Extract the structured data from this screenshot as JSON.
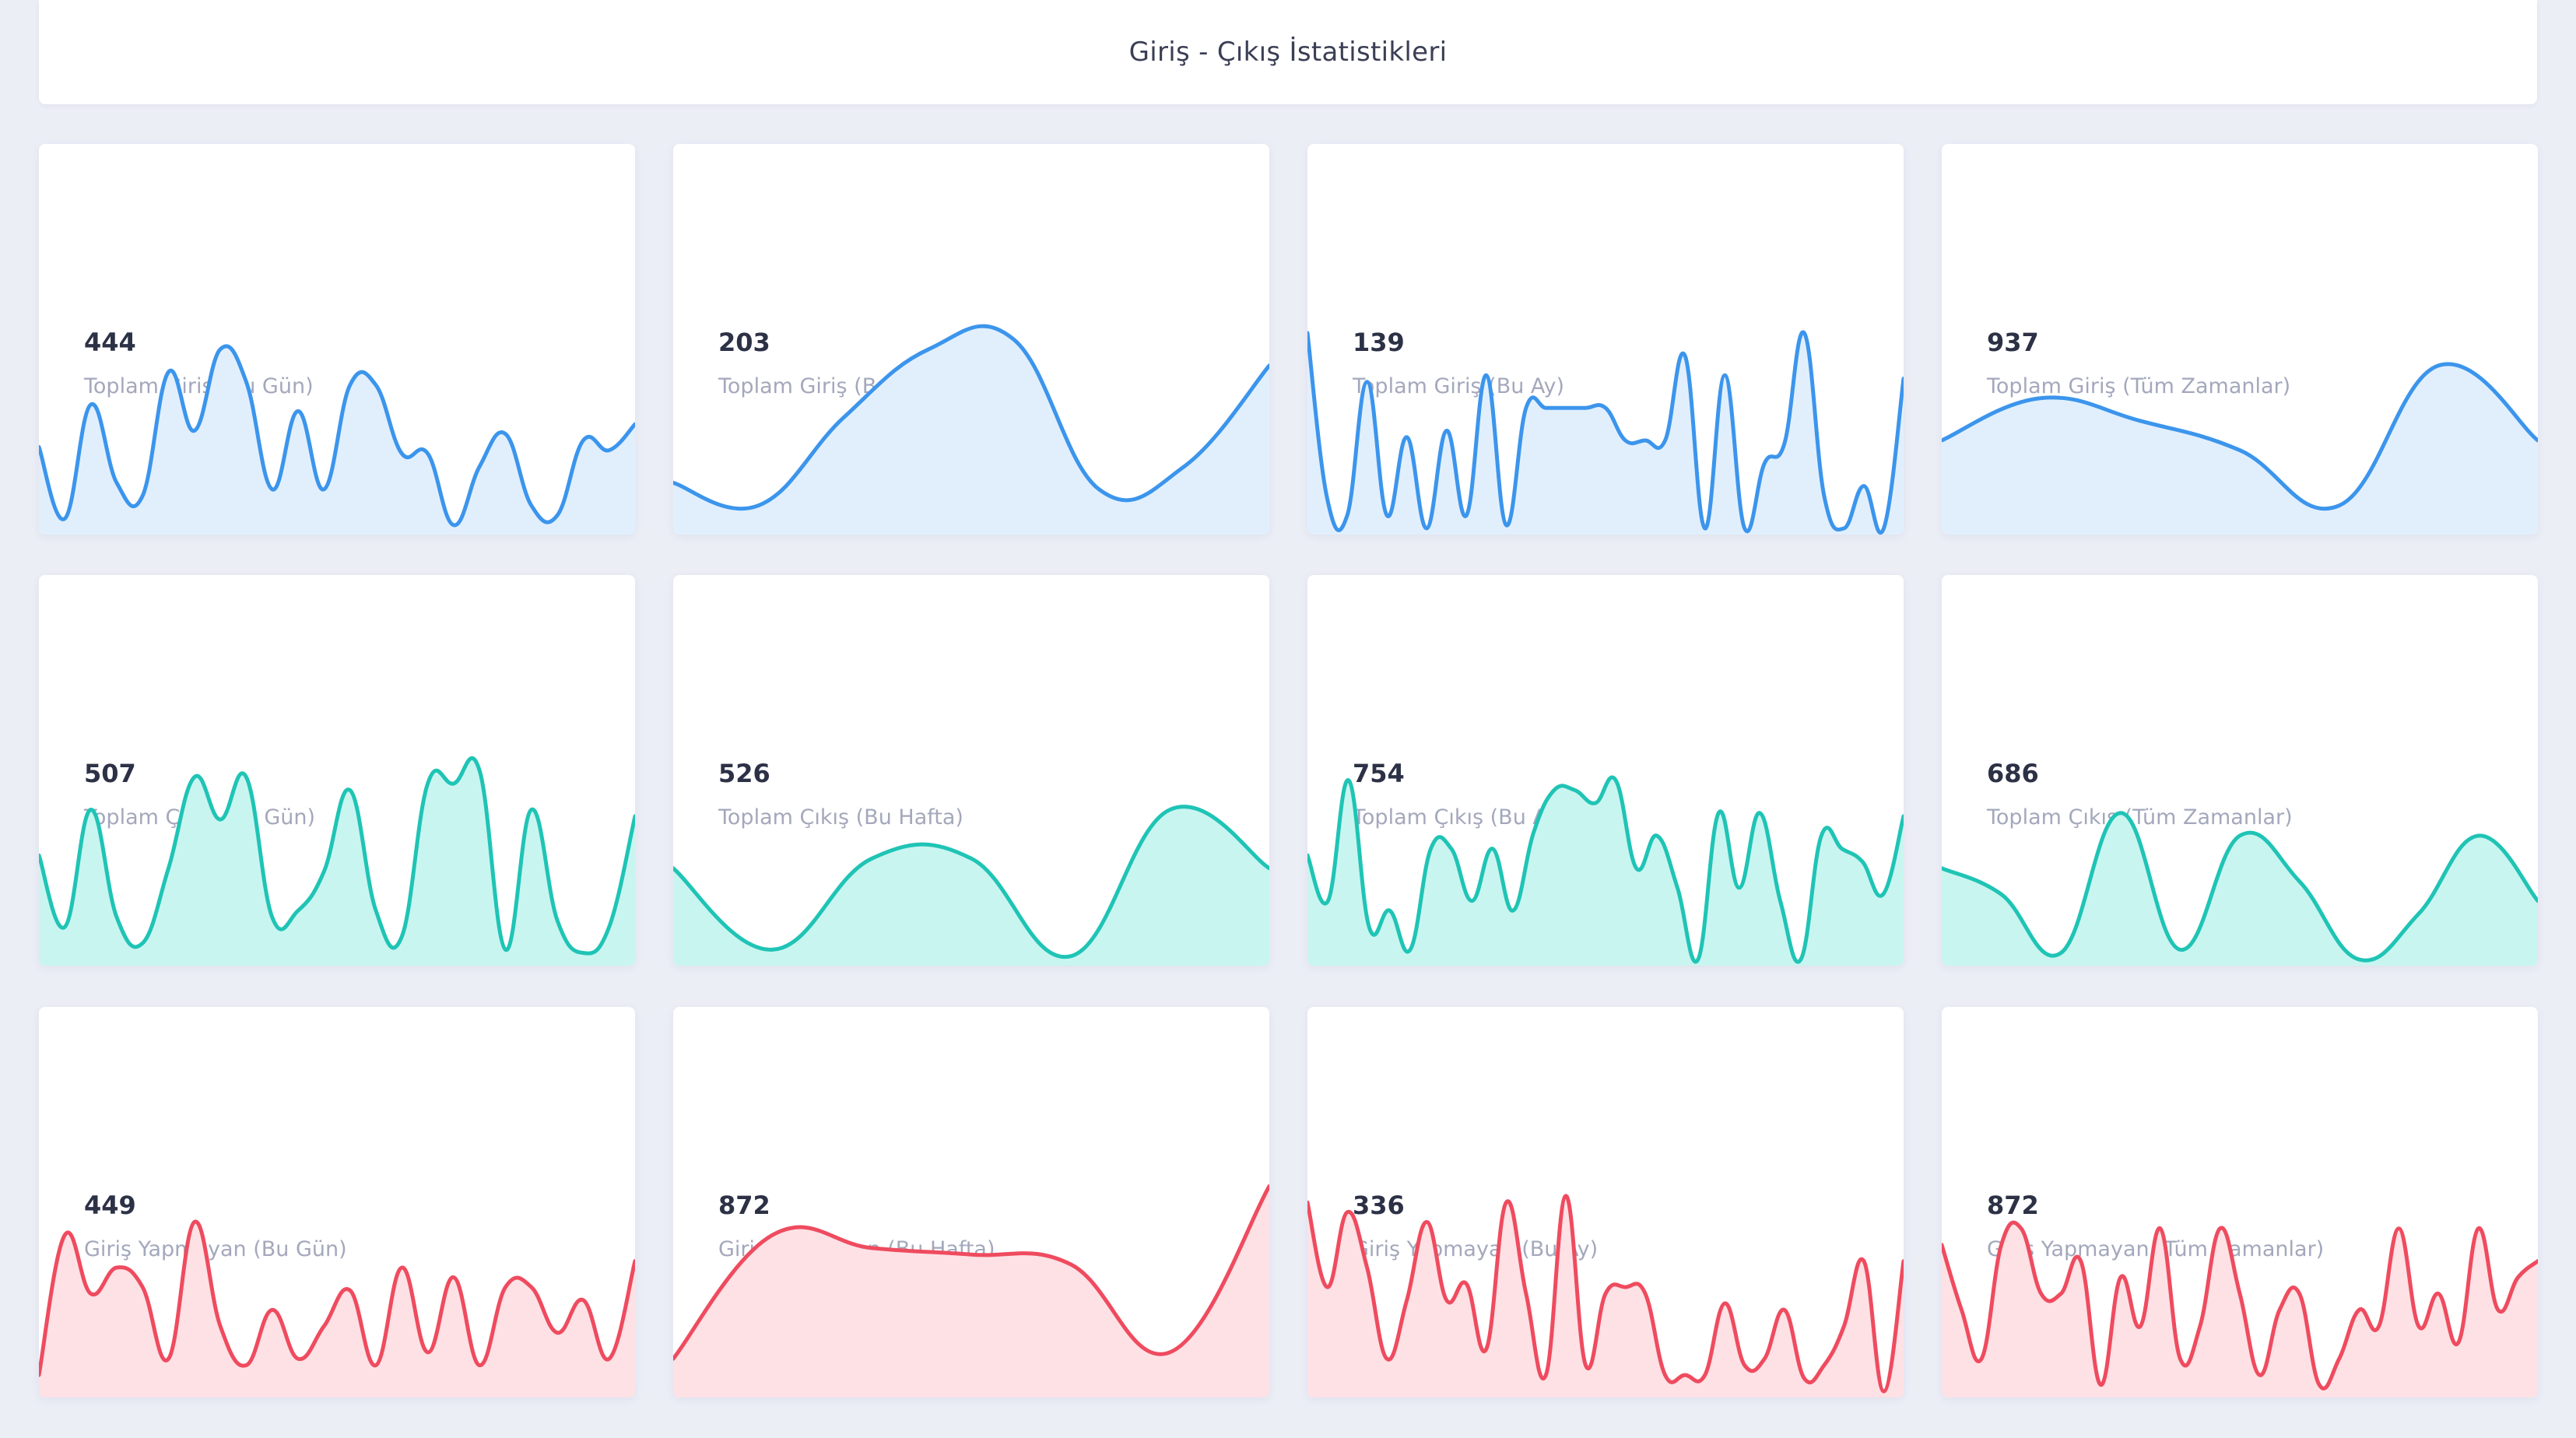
{
  "header": {
    "title": "Giriş - Çıkış İstatistikleri"
  },
  "cards": [
    {
      "value": "444",
      "label": "Toplam Giriş (Bu Gün)",
      "series": [
        25,
        3,
        38,
        14,
        10,
        48,
        30,
        55,
        45,
        12,
        36,
        12,
        44,
        44,
        23,
        23,
        1,
        19,
        29,
        7,
        4,
        27,
        24,
        32
      ]
    },
    {
      "value": "203",
      "label": "Toplam Giriş (Bu Hafta)",
      "series": [
        14,
        7,
        34,
        55,
        58,
        12,
        19,
        50
      ]
    },
    {
      "value": "139",
      "label": "Toplam Giriş (Bu Ay)",
      "series": [
        60,
        9,
        4,
        45,
        4,
        28,
        0,
        30,
        4,
        47,
        1,
        37,
        37,
        37,
        37,
        37,
        27,
        27,
        27,
        53,
        0,
        47,
        0,
        20,
        26,
        60,
        10,
        0,
        13,
        0,
        46
      ]
    },
    {
      "value": "937",
      "label": "Toplam Giriş (Tüm Zamanlar)",
      "series": [
        27,
        40,
        33,
        24,
        7,
        50,
        27
      ]
    },
    {
      "value": "507",
      "label": "Toplam Çıkış (Bu Gün)",
      "series": [
        32,
        10,
        46,
        13,
        5,
        28,
        56,
        43,
        56,
        13,
        15,
        27,
        52,
        15,
        7,
        54,
        54,
        58,
        3,
        46,
        12,
        2,
        10,
        44
      ]
    },
    {
      "value": "526",
      "label": "Toplam Çıkış (Bu Hafta)",
      "series": [
        28,
        3,
        31,
        31,
        1,
        46,
        28
      ]
    },
    {
      "value": "754",
      "label": "Toplam Çıkış (Bu Ay)",
      "series": [
        32,
        18,
        55,
        10,
        15,
        3,
        34,
        34,
        18,
        34,
        15,
        39,
        52,
        52,
        48,
        55,
        28,
        38,
        22,
        0,
        45,
        22,
        45,
        18,
        0,
        38,
        34,
        30,
        20,
        44
      ]
    },
    {
      "value": "686",
      "label": "Toplam Çıkış (Tüm Zamanlar)",
      "series": [
        28,
        20,
        2,
        45,
        3,
        38,
        24,
        0,
        14,
        38,
        18
      ]
    },
    {
      "value": "449",
      "label": "Giriş Yapmayan (Bu Gün)",
      "series": [
        5,
        48,
        30,
        38,
        32,
        10,
        52,
        20,
        8,
        25,
        10,
        20,
        31,
        8,
        38,
        12,
        35,
        8,
        32,
        32,
        18,
        28,
        10,
        40
      ]
    },
    {
      "value": "872",
      "label": "Giriş Yapmayan (Bu Hafta)",
      "series": [
        10,
        48,
        44,
        42,
        39,
        12,
        63
      ]
    },
    {
      "value": "336",
      "label": "Giriş Yapmayan (Bu Ay)",
      "series": [
        58,
        32,
        55,
        38,
        10,
        28,
        52,
        28,
        33,
        13,
        58,
        30,
        5,
        60,
        8,
        30,
        32,
        30,
        5,
        5,
        5,
        27,
        8,
        10,
        25,
        4,
        8,
        20,
        40,
        0,
        40
      ]
    },
    {
      "value": "872",
      "label": "Giriş Yapmayan (Tüm Zamanlar)",
      "series": [
        45,
        25,
        10,
        45,
        50,
        30,
        30,
        40,
        2,
        35,
        20,
        50,
        10,
        20,
        50,
        30,
        5,
        25,
        30,
        2,
        10,
        25,
        20,
        50,
        20,
        30,
        15,
        50,
        25,
        35,
        40
      ]
    }
  ],
  "colors": {
    "blue": {
      "line": "#3c95ec",
      "fill": "#e1effd"
    },
    "teal": {
      "line": "#1fc4b5",
      "fill": "#c9f5f0"
    },
    "red": {
      "line": "#ef4b5f",
      "fill": "#fde1e5"
    }
  }
}
